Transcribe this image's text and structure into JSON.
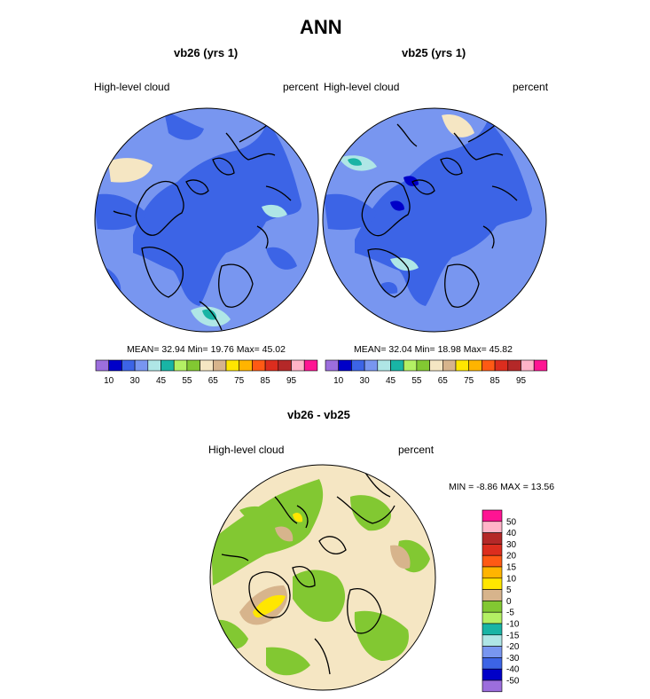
{
  "figure": {
    "title": "ANN"
  },
  "panel_left": {
    "title": "vb26 (yrs 1)",
    "left_label": "High-level cloud",
    "right_label": "percent",
    "stats": {
      "mean_label": "MEAN=",
      "mean": "32.94",
      "min_label": "Min=",
      "min": "19.76",
      "max_label": "Max=",
      "max": "45.02"
    }
  },
  "panel_right": {
    "title": "vb25 (yrs 1)",
    "left_label": "High-level cloud",
    "right_label": "percent",
    "stats": {
      "mean_label": "MEAN=",
      "mean": "32.04",
      "min_label": "Min=",
      "min": "18.98",
      "max_label": "Max=",
      "max": "45.82"
    }
  },
  "panel_diff": {
    "title": "vb26 - vb25",
    "left_label": "High-level cloud",
    "right_label": "percent",
    "stats": {
      "text": "MIN =  -8.86 MAX =  13.56"
    }
  },
  "colorbar_abs": {
    "colors": [
      "#9c6edd",
      "#0000c8",
      "#3c64e6",
      "#7896f0",
      "#afe6e6",
      "#19b4a5",
      "#b4f064",
      "#82c832",
      "#f5e6c3",
      "#d7b48c",
      "#ffe600",
      "#ffb400",
      "#ff5a14",
      "#dc2d1e",
      "#b42828",
      "#ffb4c8",
      "#ff1493"
    ],
    "labels": [
      "10",
      "30",
      "45",
      "55",
      "65",
      "75",
      "85",
      "95"
    ]
  },
  "colorbar_diff": {
    "colors": [
      "#9c6edd",
      "#0000c8",
      "#3c64e6",
      "#7896f0",
      "#afe6e6",
      "#19b4a5",
      "#b4f064",
      "#82c832",
      "#d7b48c",
      "#ffe600",
      "#ffb400",
      "#ff5a14",
      "#dc2d1e",
      "#b42828",
      "#ffb4c8",
      "#ff1493"
    ],
    "labels": [
      "-50",
      "-40",
      "-30",
      "-20",
      "-15",
      "-10",
      "-5",
      "0",
      "5",
      "10",
      "15",
      "20",
      "30",
      "40",
      "50"
    ]
  },
  "map_colors": {
    "ocean_base": "#7896f0",
    "deep_blue": "#3c64e6",
    "darkest": "#0000c8",
    "teal": "#19b4a5",
    "pale_teal": "#afe6e6",
    "diff_base": "#f5e6c3",
    "diff_green": "#82c832",
    "diff_tan": "#d7b48c",
    "diff_yellow": "#ffe600",
    "coast": "#000000"
  }
}
